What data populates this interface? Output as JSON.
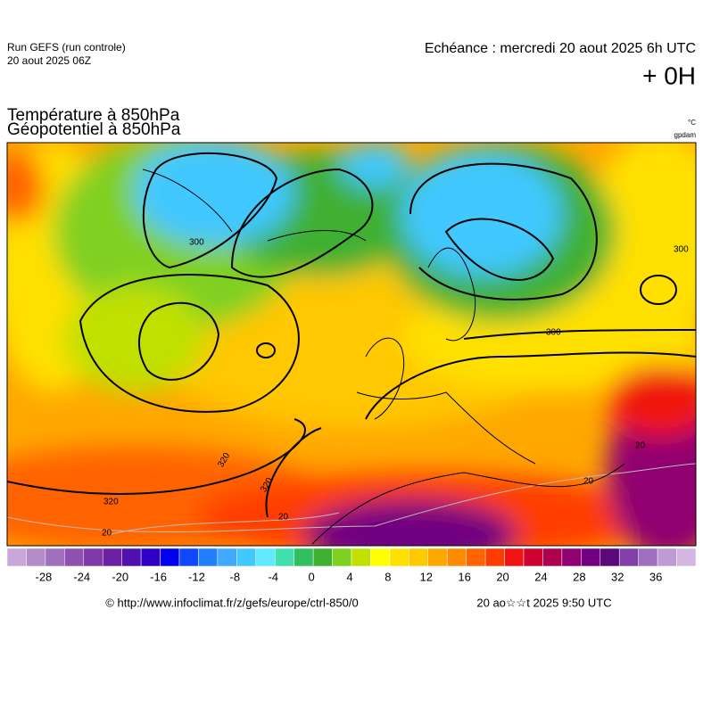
{
  "header": {
    "run": "Run GEFS (run controle)",
    "date": "20 aout 2025 06Z",
    "valid": "Echéance : mercredi 20 aout 2025 6h UTC",
    "lead": "+ 0H",
    "title1": "Température à 850hPa",
    "title2": "Géopotentiel à 850hPa",
    "unit1": "°C",
    "unit2": "gpdam"
  },
  "map": {
    "contour_labels": [
      "300",
      "300",
      "300",
      "320",
      "320",
      "320",
      "20",
      "20",
      "20",
      "20"
    ]
  },
  "colorbar": {
    "lim": [
      -32,
      40
    ],
    "ticks": [
      -28,
      -24,
      -20,
      -16,
      -12,
      -8,
      -4,
      0,
      4,
      8,
      12,
      16,
      20,
      24,
      28,
      32,
      36
    ],
    "colors": [
      "#c8a8d8",
      "#b48cc8",
      "#a070bc",
      "#9050b0",
      "#8038a8",
      "#6a20a0",
      "#5010b0",
      "#3000c8",
      "#0000f0",
      "#1048ff",
      "#2080ff",
      "#40a8ff",
      "#40c8ff",
      "#60e8ff",
      "#40e0b0",
      "#30c060",
      "#40b030",
      "#80d020",
      "#c0e000",
      "#ffff00",
      "#ffe000",
      "#ffc800",
      "#ffa800",
      "#ff8c00",
      "#ff6400",
      "#ff3c00",
      "#f01410",
      "#d00030",
      "#b00050",
      "#900070",
      "#700080",
      "#5a0a78",
      "#8040a8",
      "#a070c0",
      "#c09ad4",
      "#d4b8e2"
    ]
  },
  "footer": {
    "url": "© http://www.infoclimat.fr/z/gefs/europe/ctrl-850/0",
    "timestamp": "20 ao☆☆t 2025  9:50 UTC"
  }
}
